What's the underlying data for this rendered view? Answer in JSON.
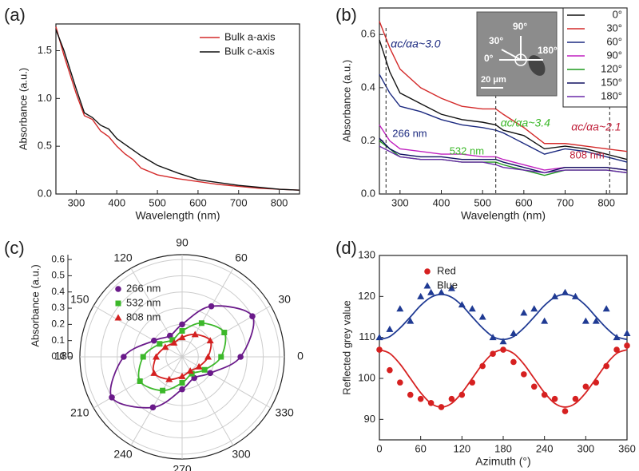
{
  "chart_data": [
    {
      "type": "line",
      "panel": "(a)",
      "xlabel": "Wavelength (nm)",
      "ylabel": "Absorbance (a.u.)",
      "x": [
        250,
        270,
        300,
        320,
        340,
        360,
        380,
        400,
        420,
        440,
        460,
        500,
        550,
        600,
        650,
        700,
        750,
        800,
        850
      ],
      "series": [
        {
          "name": "Bulk a-axis",
          "color": "#d42a2a",
          "values": [
            1.75,
            1.45,
            1.05,
            0.82,
            0.78,
            0.66,
            0.6,
            0.5,
            0.42,
            0.36,
            0.27,
            0.2,
            0.16,
            0.13,
            0.1,
            0.08,
            0.06,
            0.05,
            0.04
          ]
        },
        {
          "name": "Bulk c-axis",
          "color": "#111111",
          "values": [
            1.72,
            1.5,
            1.1,
            0.85,
            0.8,
            0.72,
            0.68,
            0.58,
            0.52,
            0.46,
            0.4,
            0.3,
            0.22,
            0.15,
            0.12,
            0.09,
            0.07,
            0.05,
            0.04
          ]
        }
      ],
      "xlim": [
        250,
        850
      ],
      "xticks": [
        300,
        400,
        500,
        600,
        700,
        800
      ],
      "ylim": [
        0,
        1.78
      ],
      "yticks": [
        {
          "value": 0,
          "label": "0.0"
        },
        {
          "value": 0.5,
          "label": "0.5"
        },
        {
          "value": 1,
          "label": "1.0"
        },
        {
          "value": 1.5,
          "label": "1.5"
        }
      ],
      "legend": "upper right"
    },
    {
      "type": "line",
      "panel": "(b)",
      "xlabel": "Wavelength (nm)",
      "ylabel": "Absorbance (a.u.)",
      "x": [
        250,
        275,
        300,
        350,
        400,
        450,
        500,
        532,
        550,
        600,
        650,
        700,
        750,
        800,
        850
      ],
      "series": [
        {
          "name": "0°",
          "color": "#111111",
          "values": [
            0.58,
            0.46,
            0.38,
            0.34,
            0.3,
            0.28,
            0.27,
            0.26,
            0.24,
            0.22,
            0.17,
            0.18,
            0.17,
            0.15,
            0.13
          ]
        },
        {
          "name": "30°",
          "color": "#d42a2a",
          "values": [
            0.65,
            0.55,
            0.47,
            0.4,
            0.36,
            0.33,
            0.32,
            0.32,
            0.3,
            0.25,
            0.19,
            0.19,
            0.18,
            0.17,
            0.16
          ]
        },
        {
          "name": "60°",
          "color": "#1c2a80",
          "values": [
            0.45,
            0.38,
            0.33,
            0.31,
            0.28,
            0.26,
            0.25,
            0.24,
            0.23,
            0.19,
            0.15,
            0.17,
            0.16,
            0.14,
            0.12
          ]
        },
        {
          "name": "90°",
          "color": "#c020c0",
          "values": [
            0.26,
            0.2,
            0.17,
            0.16,
            0.15,
            0.15,
            0.14,
            0.14,
            0.13,
            0.11,
            0.09,
            0.1,
            0.1,
            0.1,
            0.09
          ]
        },
        {
          "name": "120°",
          "color": "#1f9a1f",
          "values": [
            0.2,
            0.17,
            0.14,
            0.13,
            0.13,
            0.12,
            0.12,
            0.12,
            0.11,
            0.09,
            0.07,
            0.09,
            0.09,
            0.09,
            0.08
          ]
        },
        {
          "name": "150°",
          "color": "#101060",
          "values": [
            0.21,
            0.17,
            0.15,
            0.14,
            0.14,
            0.13,
            0.13,
            0.13,
            0.12,
            0.1,
            0.08,
            0.1,
            0.1,
            0.1,
            0.09
          ]
        },
        {
          "name": "180°",
          "color": "#6a2aa8",
          "values": [
            0.18,
            0.16,
            0.14,
            0.13,
            0.13,
            0.12,
            0.12,
            0.11,
            0.1,
            0.09,
            0.08,
            0.09,
            0.09,
            0.09,
            0.08
          ]
        }
      ],
      "xlim": [
        250,
        850
      ],
      "xticks": [
        300,
        400,
        500,
        600,
        700,
        800
      ],
      "ylim": [
        0,
        0.7
      ],
      "yticks": [
        {
          "value": 0,
          "label": "0.0"
        },
        {
          "value": 0.2,
          "label": "0.2"
        },
        {
          "value": 0.4,
          "label": "0.4"
        },
        {
          "value": 0.6,
          "label": "0.6"
        }
      ],
      "markers": [
        {
          "x": 266,
          "label": "266 nm",
          "color": "#1c2a80"
        },
        {
          "x": 532,
          "label": "532 nm",
          "color": "#3cb82a"
        },
        {
          "x": 808,
          "label": "808 nm",
          "color": "#c0203a"
        }
      ],
      "annotations": [
        {
          "text": "αc/αa~3.0",
          "color": "#1c2a80"
        },
        {
          "text": "αc/αa~3.4",
          "color": "#3cb82a"
        },
        {
          "text": "αc/αa~2.1",
          "color": "#c0203a"
        }
      ],
      "inset": {
        "labels": [
          "90°",
          "30°",
          "0°",
          "180°"
        ],
        "scale_bar": "20 μm"
      },
      "legend": "upper right"
    },
    {
      "type": "polar",
      "panel": "(c)",
      "ylabel": "Absorbance (a.u.)",
      "angles": [
        0,
        30,
        60,
        90,
        120,
        150,
        180,
        210,
        240,
        270,
        300,
        330
      ],
      "angle_ticks": [
        0,
        30,
        60,
        90,
        120,
        150,
        180,
        210,
        240,
        270,
        300,
        330
      ],
      "series": [
        {
          "name": "266 nm",
          "color": "#6a1a8a",
          "marker": "circle",
          "values": [
            0.36,
            0.5,
            0.36,
            0.2,
            0.15,
            0.2,
            0.36,
            0.5,
            0.36,
            0.2,
            0.15,
            0.2
          ]
        },
        {
          "name": "532 nm",
          "color": "#3cb82a",
          "marker": "square",
          "values": [
            0.24,
            0.3,
            0.24,
            0.16,
            0.12,
            0.16,
            0.24,
            0.3,
            0.24,
            0.16,
            0.12,
            0.16
          ]
        },
        {
          "name": "808 nm",
          "color": "#d42020",
          "marker": "triangle",
          "values": [
            0.16,
            0.2,
            0.16,
            0.12,
            0.1,
            0.12,
            0.16,
            0.2,
            0.16,
            0.12,
            0.1,
            0.12
          ]
        }
      ],
      "ylim": [
        0,
        0.63
      ],
      "yticks": [
        {
          "value": 0,
          "label": "0.0"
        },
        {
          "value": 0.1,
          "label": "0.1"
        },
        {
          "value": 0.2,
          "label": "0.2"
        },
        {
          "value": 0.3,
          "label": "0.3"
        },
        {
          "value": 0.4,
          "label": "0.4"
        },
        {
          "value": 0.5,
          "label": "0.5"
        },
        {
          "value": 0.6,
          "label": "0.6"
        }
      ],
      "legend": "upper left"
    },
    {
      "type": "scatter",
      "panel": "(d)",
      "xlabel": "Azimuth (°)",
      "ylabel": "Reflected grey value",
      "x": [
        0,
        15,
        30,
        45,
        60,
        75,
        90,
        105,
        120,
        135,
        150,
        165,
        180,
        195,
        210,
        225,
        240,
        255,
        270,
        285,
        300,
        315,
        330,
        345,
        360
      ],
      "series": [
        {
          "name": "Red",
          "color": "#d62020",
          "marker": "circle",
          "values": [
            107,
            102,
            99,
            96,
            95,
            94,
            93,
            95,
            96,
            99,
            103,
            106,
            107,
            104,
            101,
            98,
            96,
            95,
            92,
            95,
            98,
            99,
            103,
            107,
            108
          ],
          "fit_values": [
            107,
            106.1,
            103.5,
            100,
            96.5,
            93.9,
            93,
            93.9,
            96.5,
            100,
            103.5,
            106.1,
            107,
            106.1,
            103.5,
            100,
            96.5,
            93.9,
            93,
            93.9,
            96.5,
            100,
            103.5,
            106.1,
            107
          ]
        },
        {
          "name": "Blue",
          "color": "#1f3a93",
          "marker": "triangle",
          "values": [
            110,
            112,
            117,
            114,
            120,
            121,
            121,
            122,
            118,
            117,
            115,
            110,
            109,
            111,
            116,
            117,
            114,
            120,
            121,
            120,
            114,
            114,
            117,
            110,
            111
          ],
          "fit_values": [
            109.5,
            110.2,
            112.3,
            115,
            117.8,
            119.8,
            120.5,
            119.8,
            117.8,
            115,
            112.3,
            110.2,
            109.5,
            110.2,
            112.3,
            115,
            117.8,
            119.8,
            120.5,
            119.8,
            117.8,
            115,
            112.3,
            110.2,
            109.5
          ]
        }
      ],
      "xlim": [
        0,
        360
      ],
      "xticks": [
        0,
        60,
        120,
        180,
        240,
        300,
        360
      ],
      "ylim": [
        85,
        130
      ],
      "yticks": [
        90,
        100,
        110,
        120,
        130
      ],
      "legend": "upper left"
    }
  ]
}
